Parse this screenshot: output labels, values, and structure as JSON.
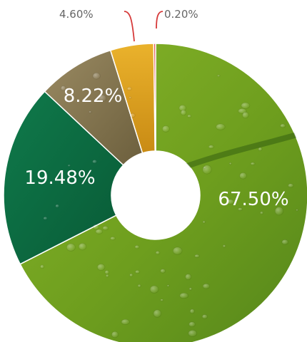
{
  "chart_data": {
    "type": "pie",
    "title": "",
    "series": [
      {
        "values": [
          67.5,
          19.48,
          8.22,
          4.6,
          0.2
        ],
        "labels": [
          "67.50%",
          "19.48%",
          "8.22%",
          "4.60%",
          "0.20%"
        ]
      }
    ],
    "colors": [
      "#6e9e1e",
      "#0c6840",
      "#8a7a52",
      "#e0a020",
      "#d22f2f"
    ],
    "label_placement": [
      "inside",
      "inside",
      "inside",
      "callout",
      "callout"
    ],
    "start": "top, clockwise",
    "style": "donut"
  },
  "colors": {
    "leader": "#d63a3a",
    "label_text": "#ffffff",
    "callout_text": "#666666"
  }
}
